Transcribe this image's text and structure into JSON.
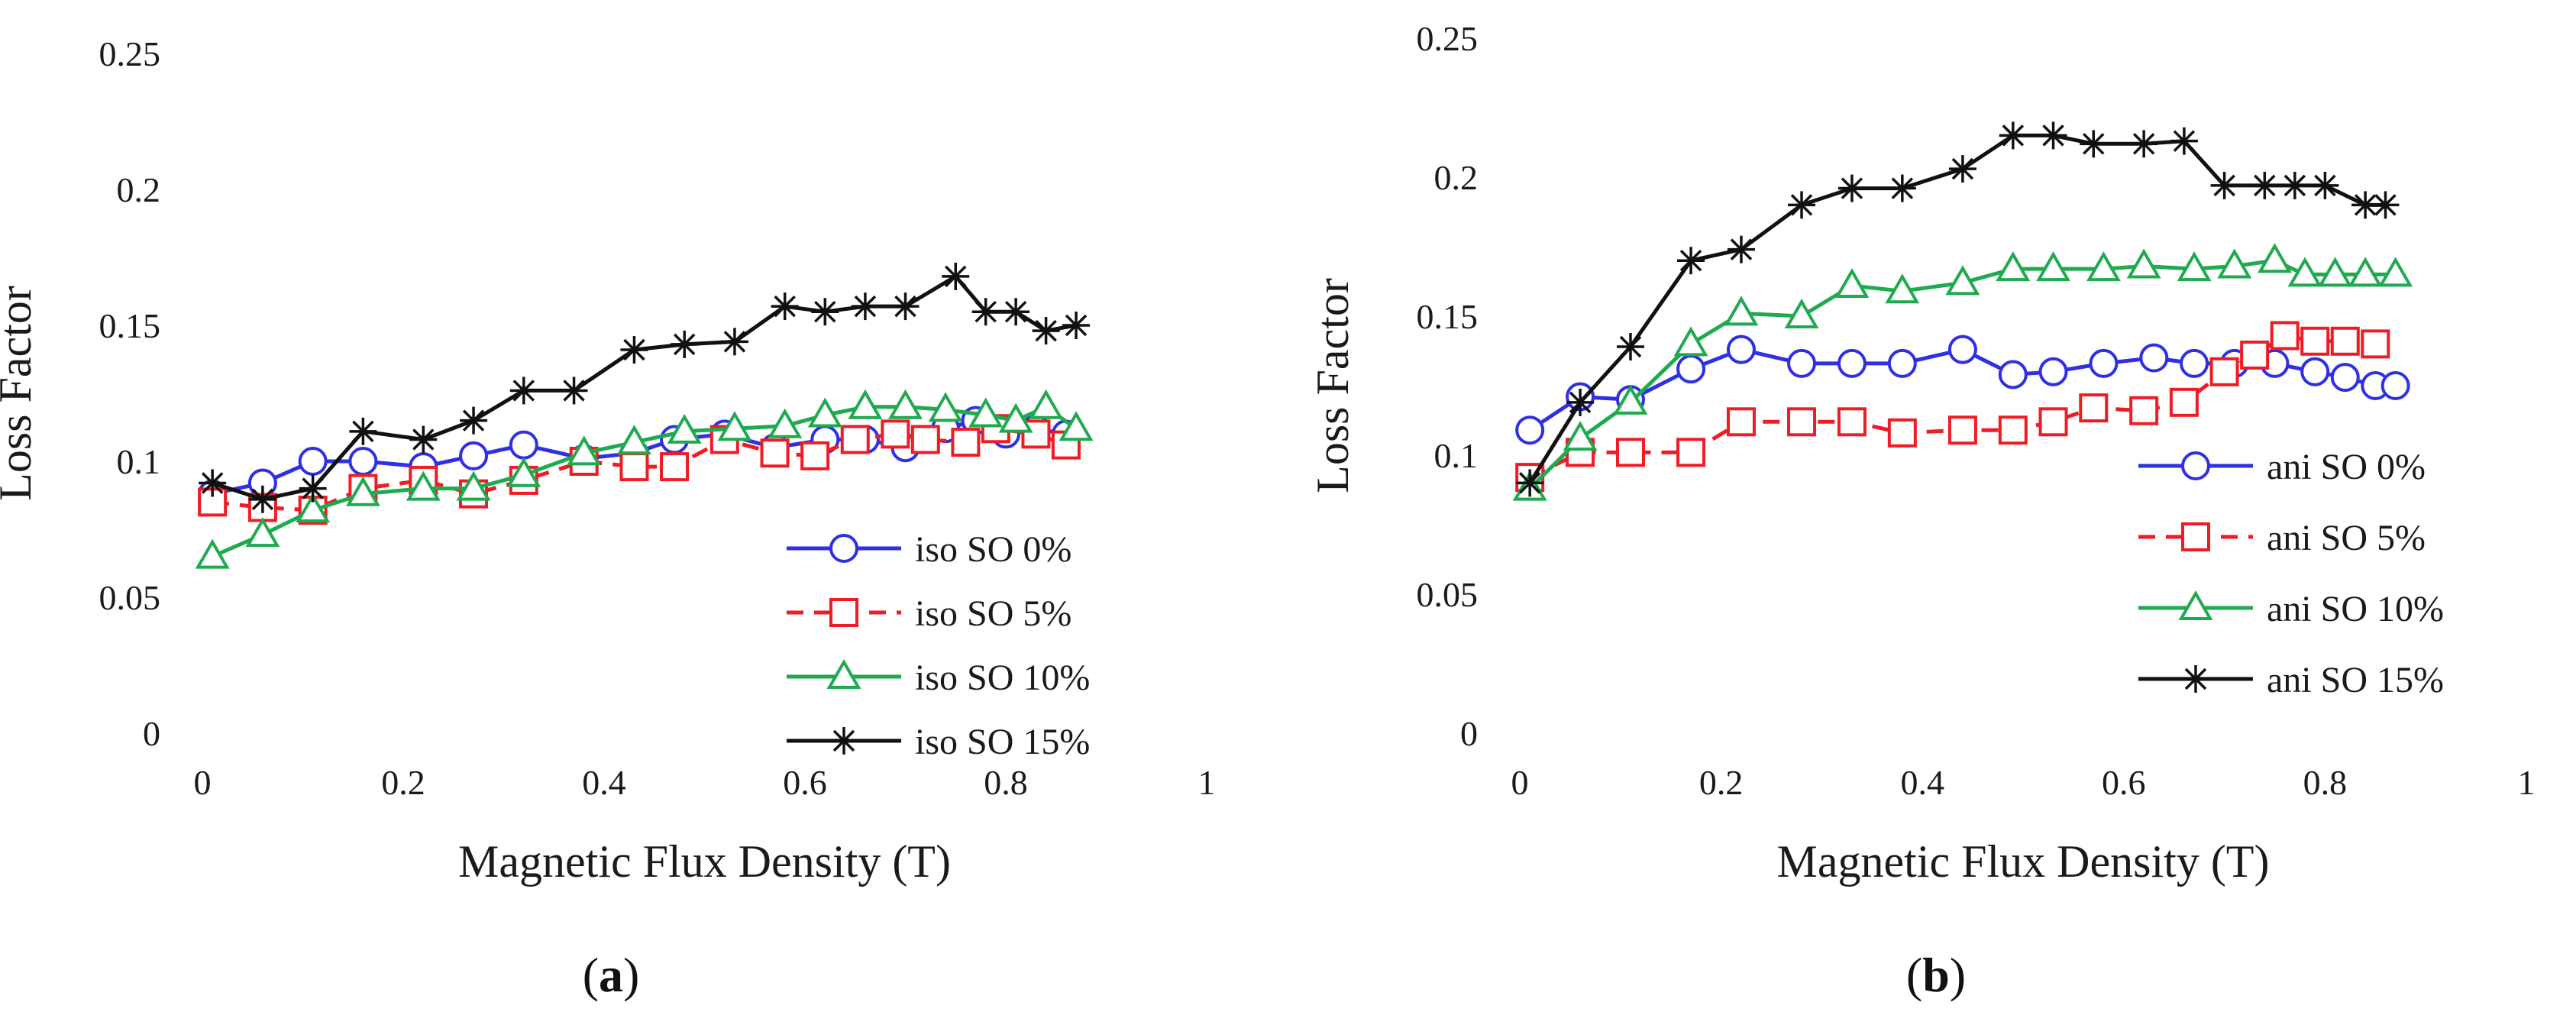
{
  "colors": {
    "blue": "#2f2fe6",
    "red": "#ee1c24",
    "green": "#1faa4f",
    "black": "#111111"
  },
  "captions": [
    {
      "open": "(",
      "letter": "a",
      "close": ")"
    },
    {
      "open": "(",
      "letter": "b",
      "close": ")"
    }
  ],
  "chart_data": [
    {
      "type": "line",
      "title": "",
      "xlabel": "Magnetic Flux Density (T)",
      "ylabel": "Loss Factor",
      "xlim": [
        0,
        1
      ],
      "ylim": [
        0,
        0.25
      ],
      "x_ticks": [
        "0",
        "0.2",
        "0.4",
        "0.6",
        "0.8",
        "1"
      ],
      "y_ticks": [
        "0",
        "0.05",
        "0.1",
        "0.15",
        "0.2",
        "0.25"
      ],
      "grid": false,
      "legend_position": "bottom-right",
      "series": [
        {
          "name": "iso SO 0%",
          "color": "blue",
          "marker": "circle",
          "dash": "solid",
          "x": [
            0.01,
            0.06,
            0.11,
            0.16,
            0.22,
            0.27,
            0.32,
            0.38,
            0.43,
            0.47,
            0.52,
            0.57,
            0.62,
            0.66,
            0.7,
            0.74,
            0.77,
            0.8,
            0.83,
            0.86
          ],
          "y": [
            0.088,
            0.092,
            0.1,
            0.1,
            0.098,
            0.102,
            0.106,
            0.101,
            0.103,
            0.108,
            0.11,
            0.105,
            0.108,
            0.108,
            0.105,
            0.112,
            0.115,
            0.11,
            0.112,
            0.11
          ]
        },
        {
          "name": "iso SO 5%",
          "color": "red",
          "marker": "square",
          "dash": "dashed",
          "x": [
            0.01,
            0.06,
            0.11,
            0.16,
            0.22,
            0.27,
            0.32,
            0.38,
            0.43,
            0.47,
            0.52,
            0.57,
            0.61,
            0.65,
            0.69,
            0.72,
            0.76,
            0.79,
            0.83,
            0.86
          ],
          "y": [
            0.085,
            0.083,
            0.082,
            0.09,
            0.093,
            0.088,
            0.093,
            0.1,
            0.098,
            0.098,
            0.108,
            0.103,
            0.102,
            0.108,
            0.11,
            0.108,
            0.107,
            0.112,
            0.11,
            0.106
          ]
        },
        {
          "name": "iso SO 10%",
          "color": "green",
          "marker": "triangle",
          "dash": "solid",
          "x": [
            0.01,
            0.06,
            0.11,
            0.16,
            0.22,
            0.27,
            0.32,
            0.38,
            0.43,
            0.48,
            0.53,
            0.58,
            0.62,
            0.66,
            0.7,
            0.74,
            0.78,
            0.81,
            0.84,
            0.87
          ],
          "y": [
            0.065,
            0.073,
            0.082,
            0.088,
            0.09,
            0.09,
            0.095,
            0.103,
            0.107,
            0.111,
            0.112,
            0.113,
            0.117,
            0.12,
            0.12,
            0.119,
            0.117,
            0.115,
            0.12,
            0.112
          ]
        },
        {
          "name": "iso SO 15%",
          "color": "black",
          "marker": "star",
          "dash": "solid",
          "x": [
            0.01,
            0.06,
            0.11,
            0.16,
            0.22,
            0.27,
            0.32,
            0.37,
            0.43,
            0.48,
            0.53,
            0.58,
            0.62,
            0.66,
            0.7,
            0.75,
            0.78,
            0.81,
            0.84,
            0.87
          ],
          "y": [
            0.092,
            0.086,
            0.09,
            0.111,
            0.108,
            0.115,
            0.126,
            0.126,
            0.141,
            0.143,
            0.144,
            0.157,
            0.155,
            0.157,
            0.157,
            0.168,
            0.155,
            0.155,
            0.148,
            0.15
          ]
        }
      ]
    },
    {
      "type": "line",
      "title": "",
      "xlabel": "Magnetic Flux Density (T)",
      "ylabel": "Loss Factor",
      "xlim": [
        0,
        1
      ],
      "ylim": [
        0,
        0.25
      ],
      "x_ticks": [
        "0",
        "0.2",
        "0.4",
        "0.6",
        "0.8",
        "1"
      ],
      "y_ticks": [
        "0",
        "0.05",
        "0.1",
        "0.15",
        "0.2",
        "0.25"
      ],
      "grid": false,
      "legend_position": "bottom-right",
      "series": [
        {
          "name": "ani SO 0%",
          "color": "blue",
          "marker": "circle",
          "dash": "solid",
          "x": [
            0.01,
            0.06,
            0.11,
            0.17,
            0.22,
            0.28,
            0.33,
            0.38,
            0.44,
            0.49,
            0.53,
            0.58,
            0.63,
            0.67,
            0.71,
            0.75,
            0.79,
            0.82,
            0.85,
            0.87
          ],
          "y": [
            0.109,
            0.121,
            0.12,
            0.131,
            0.138,
            0.133,
            0.133,
            0.133,
            0.138,
            0.129,
            0.13,
            0.133,
            0.135,
            0.133,
            0.133,
            0.133,
            0.13,
            0.128,
            0.125,
            0.125
          ]
        },
        {
          "name": "ani SO 5%",
          "color": "red",
          "marker": "square",
          "dash": "dashed",
          "x": [
            0.01,
            0.06,
            0.11,
            0.17,
            0.22,
            0.28,
            0.33,
            0.38,
            0.44,
            0.49,
            0.53,
            0.57,
            0.62,
            0.66,
            0.7,
            0.73,
            0.76,
            0.79,
            0.82,
            0.85
          ],
          "y": [
            0.092,
            0.101,
            0.101,
            0.101,
            0.112,
            0.112,
            0.112,
            0.108,
            0.109,
            0.109,
            0.112,
            0.117,
            0.116,
            0.119,
            0.13,
            0.136,
            0.143,
            0.141,
            0.141,
            0.14
          ]
        },
        {
          "name": "ani SO 10%",
          "color": "green",
          "marker": "triangle",
          "dash": "solid",
          "x": [
            0.01,
            0.06,
            0.11,
            0.17,
            0.22,
            0.28,
            0.33,
            0.38,
            0.44,
            0.49,
            0.53,
            0.58,
            0.62,
            0.67,
            0.71,
            0.75,
            0.78,
            0.81,
            0.84,
            0.87
          ],
          "y": [
            0.088,
            0.106,
            0.119,
            0.14,
            0.151,
            0.15,
            0.161,
            0.159,
            0.162,
            0.167,
            0.167,
            0.167,
            0.168,
            0.167,
            0.168,
            0.17,
            0.165,
            0.165,
            0.165,
            0.165
          ]
        },
        {
          "name": "ani SO 15%",
          "color": "black",
          "marker": "star",
          "dash": "solid",
          "x": [
            0.01,
            0.06,
            0.11,
            0.17,
            0.22,
            0.28,
            0.33,
            0.38,
            0.44,
            0.49,
            0.53,
            0.57,
            0.62,
            0.66,
            0.7,
            0.74,
            0.77,
            0.8,
            0.84,
            0.86
          ],
          "y": [
            0.09,
            0.119,
            0.139,
            0.17,
            0.174,
            0.19,
            0.196,
            0.196,
            0.203,
            0.215,
            0.215,
            0.212,
            0.212,
            0.213,
            0.197,
            0.197,
            0.197,
            0.197,
            0.19,
            0.19
          ]
        }
      ]
    }
  ]
}
